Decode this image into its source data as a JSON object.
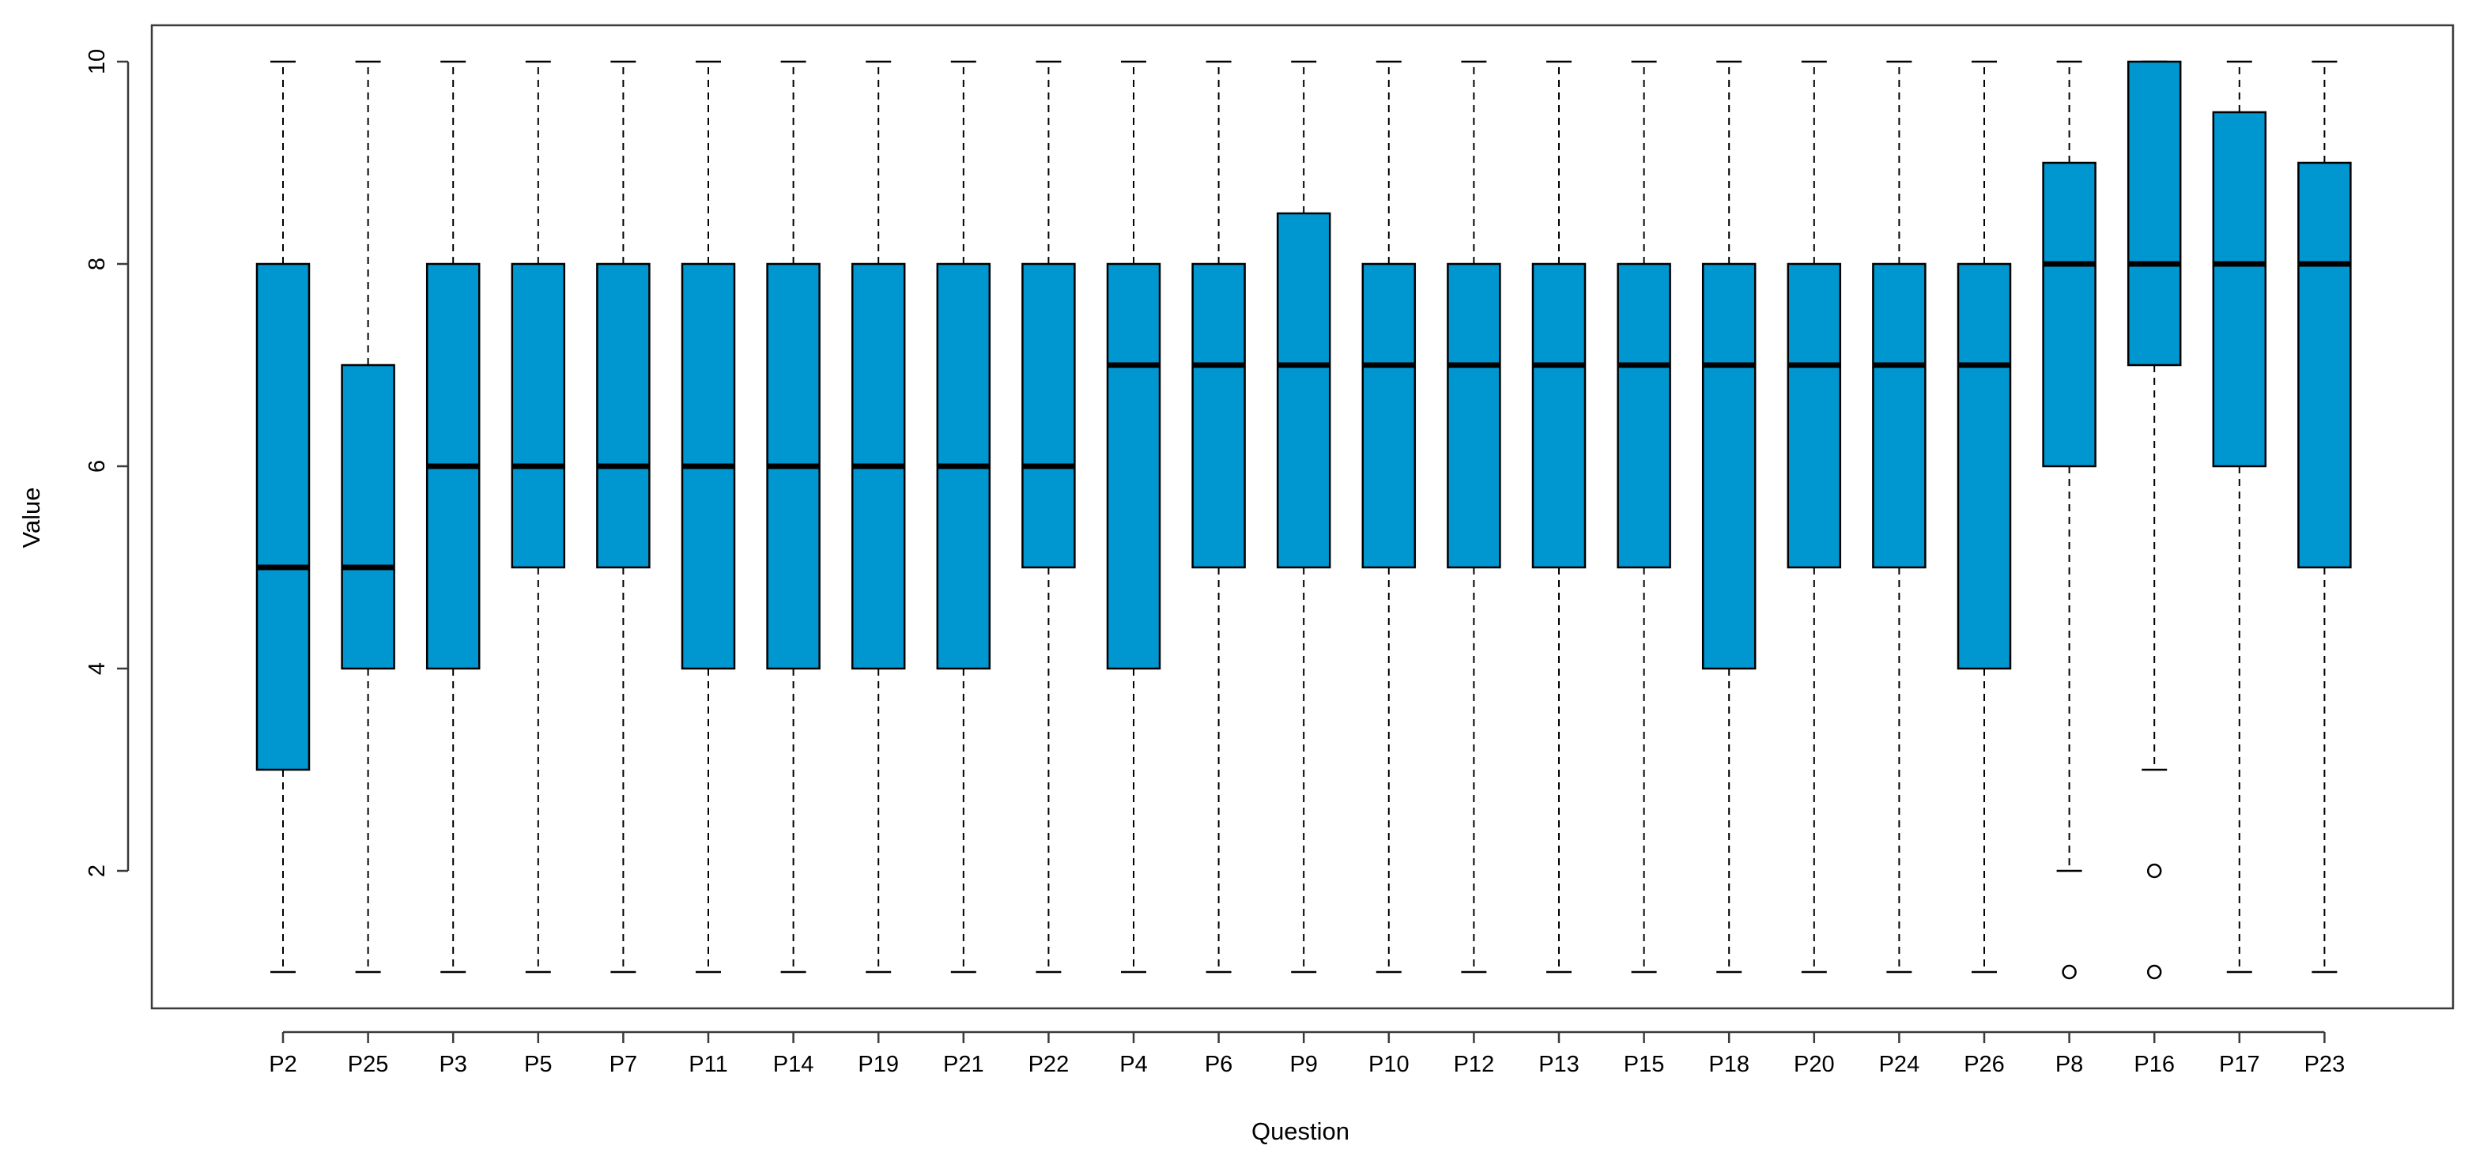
{
  "chart_data": {
    "type": "boxplot",
    "title": "",
    "xlabel": "Question",
    "ylabel": "Value",
    "ylim": [
      0.6,
      10.4
    ],
    "yticks": [
      2,
      4,
      6,
      8,
      10
    ],
    "grid": false,
    "box_color": "#0096D0",
    "line_color": "#000000",
    "categories": [
      "P2",
      "P25",
      "P3",
      "P5",
      "P7",
      "P11",
      "P14",
      "P19",
      "P21",
      "P22",
      "P4",
      "P6",
      "P9",
      "P10",
      "P12",
      "P13",
      "P15",
      "P18",
      "P20",
      "P24",
      "P26",
      "P8",
      "P16",
      "P17",
      "P23"
    ],
    "boxes": [
      {
        "label": "P2",
        "min": 1,
        "q1": 3,
        "median": 5,
        "q3": 8,
        "max": 10,
        "outliers": []
      },
      {
        "label": "P25",
        "min": 1,
        "q1": 4,
        "median": 5,
        "q3": 7,
        "max": 10,
        "outliers": []
      },
      {
        "label": "P3",
        "min": 1,
        "q1": 4,
        "median": 6,
        "q3": 8,
        "max": 10,
        "outliers": []
      },
      {
        "label": "P5",
        "min": 1,
        "q1": 5,
        "median": 6,
        "q3": 8,
        "max": 10,
        "outliers": []
      },
      {
        "label": "P7",
        "min": 1,
        "q1": 5,
        "median": 6,
        "q3": 8,
        "max": 10,
        "outliers": []
      },
      {
        "label": "P11",
        "min": 1,
        "q1": 4,
        "median": 6,
        "q3": 8,
        "max": 10,
        "outliers": []
      },
      {
        "label": "P14",
        "min": 1,
        "q1": 4,
        "median": 6,
        "q3": 8,
        "max": 10,
        "outliers": []
      },
      {
        "label": "P19",
        "min": 1,
        "q1": 4,
        "median": 6,
        "q3": 8,
        "max": 10,
        "outliers": []
      },
      {
        "label": "P21",
        "min": 1,
        "q1": 4,
        "median": 6,
        "q3": 8,
        "max": 10,
        "outliers": []
      },
      {
        "label": "P22",
        "min": 1,
        "q1": 5,
        "median": 6,
        "q3": 8,
        "max": 10,
        "outliers": []
      },
      {
        "label": "P4",
        "min": 1,
        "q1": 4,
        "median": 7,
        "q3": 8,
        "max": 10,
        "outliers": []
      },
      {
        "label": "P6",
        "min": 1,
        "q1": 5,
        "median": 7,
        "q3": 8,
        "max": 10,
        "outliers": []
      },
      {
        "label": "P9",
        "min": 1,
        "q1": 5,
        "median": 7,
        "q3": 8.5,
        "max": 10,
        "outliers": []
      },
      {
        "label": "P10",
        "min": 1,
        "q1": 5,
        "median": 7,
        "q3": 8,
        "max": 10,
        "outliers": []
      },
      {
        "label": "P12",
        "min": 1,
        "q1": 5,
        "median": 7,
        "q3": 8,
        "max": 10,
        "outliers": []
      },
      {
        "label": "P13",
        "min": 1,
        "q1": 5,
        "median": 7,
        "q3": 8,
        "max": 10,
        "outliers": []
      },
      {
        "label": "P15",
        "min": 1,
        "q1": 5,
        "median": 7,
        "q3": 8,
        "max": 10,
        "outliers": []
      },
      {
        "label": "P18",
        "min": 1,
        "q1": 4,
        "median": 7,
        "q3": 8,
        "max": 10,
        "outliers": []
      },
      {
        "label": "P20",
        "min": 1,
        "q1": 5,
        "median": 7,
        "q3": 8,
        "max": 10,
        "outliers": []
      },
      {
        "label": "P24",
        "min": 1,
        "q1": 5,
        "median": 7,
        "q3": 8,
        "max": 10,
        "outliers": []
      },
      {
        "label": "P26",
        "min": 1,
        "q1": 4,
        "median": 7,
        "q3": 8,
        "max": 10,
        "outliers": []
      },
      {
        "label": "P8",
        "min": 2,
        "q1": 6,
        "median": 8,
        "q3": 9,
        "max": 10,
        "outliers": [
          1
        ]
      },
      {
        "label": "P16",
        "min": 3,
        "q1": 7,
        "median": 8,
        "q3": 10,
        "max": 10,
        "outliers": [
          2,
          1
        ]
      },
      {
        "label": "P17",
        "min": 1,
        "q1": 6,
        "median": 8,
        "q3": 9.5,
        "max": 10,
        "outliers": []
      },
      {
        "label": "P23",
        "min": 1,
        "q1": 5,
        "median": 8,
        "q3": 9,
        "max": 10,
        "outliers": []
      }
    ]
  }
}
